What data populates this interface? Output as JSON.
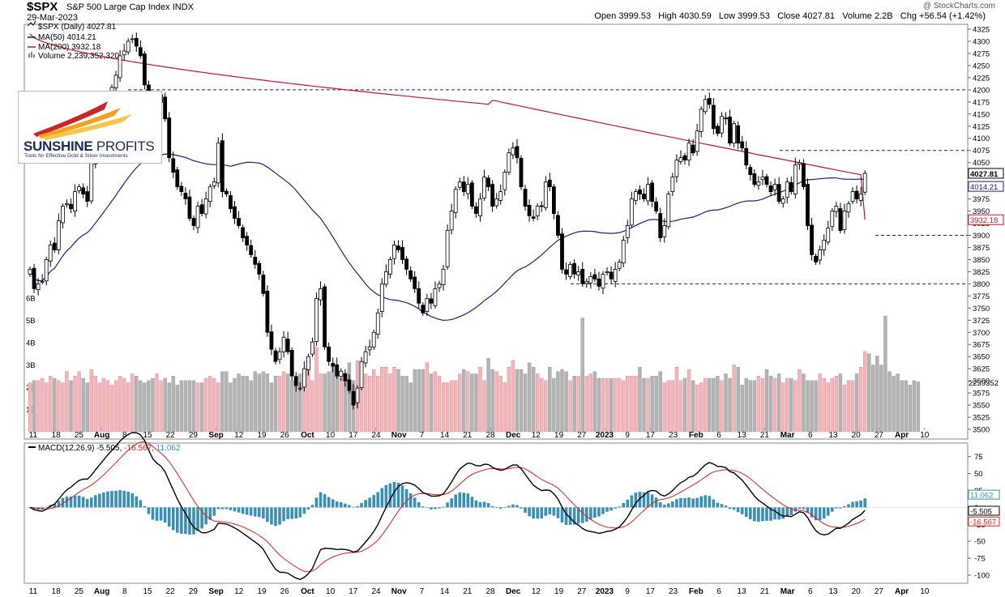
{
  "header": {
    "symbol": "$SPX",
    "name": "S&P 500 Large Cap Index",
    "exchange": "INDX",
    "date": "29-Mar-2023",
    "open_label": "Open",
    "open": "3999.53",
    "high_label": "High",
    "high": "4030.59",
    "low_label": "Low",
    "low": "3999.53",
    "close_label": "Close",
    "close": "4027.81",
    "volume_label": "Volume",
    "volume": "2.2B",
    "chg_label": "Chg",
    "chg": "+56.54 (+1.42%)",
    "watermark": "@ StockCharts.com"
  },
  "logo": {
    "name_bold": "SUNSHINE",
    "name_light": "PROFITS",
    "tagline": "Tools for Effective Gold & Silver Investments"
  },
  "legend": {
    "price": "$SPX (Daily) 4027.81",
    "ma50": "MA(50) 4014.21",
    "ma200": "MA(200) 3932.18",
    "volume": "Volume 2,239,352,320"
  },
  "macd_legend": {
    "label": "MACD(12,26,9)",
    "macd": "-5.505",
    "signal": "-16.567",
    "hist": "11.062"
  },
  "colors": {
    "up_volume": "#f2b5b9",
    "down_volume": "#b3b3b3",
    "ma50": "#1a237e",
    "ma200": "#c2182b",
    "macd_line": "#000000",
    "signal_line": "#e0201b",
    "histogram": "#3a8fb7",
    "level_line": "#1a237e"
  },
  "chart_data": [
    {
      "type": "candlestick",
      "title": "$SPX (Daily)",
      "x_tick_labels": [
        "11",
        "18",
        "25",
        "Aug",
        "8",
        "15",
        "22",
        "29",
        "Sep",
        "12",
        "19",
        "26",
        "Oct",
        "10",
        "17",
        "24",
        "Nov",
        "7",
        "14",
        "21",
        "28",
        "Dec",
        "12",
        "19",
        "27",
        "2023",
        "9",
        "17",
        "23",
        "Feb",
        "6",
        "13",
        "21",
        "Mar",
        "6",
        "13",
        "20",
        "27",
        "Apr",
        "10"
      ],
      "y_ticks": [
        3500,
        3525,
        3550,
        3575,
        3600,
        3625,
        3650,
        3675,
        3700,
        3725,
        3750,
        3775,
        3800,
        3825,
        3850,
        3875,
        3900,
        3925,
        3950,
        3975,
        4000,
        4025,
        4050,
        4075,
        4100,
        4125,
        4150,
        4175,
        4200,
        4225,
        4250,
        4275,
        4300,
        4325
      ],
      "ylim": [
        3480,
        4335
      ],
      "horizontal_levels": [
        4200,
        4075,
        3900,
        3800
      ],
      "last_values": {
        "close": "4027.81",
        "ma50": "4014.21",
        "ma200": "3932.18"
      },
      "close_series": [
        3830,
        3790,
        3800,
        3805,
        3850,
        3880,
        3870,
        3930,
        3960,
        3965,
        3955,
        3990,
        4000,
        3985,
        3970,
        4050,
        4100,
        4120,
        4150,
        4180,
        4205,
        4230,
        4270,
        4280,
        4300,
        4305,
        4290,
        4270,
        4210,
        4130,
        4120,
        4175,
        4190,
        4140,
        4060,
        4030,
        4000,
        3990,
        3975,
        3935,
        3920,
        3960,
        3945,
        3975,
        4000,
        4010,
        4090,
        3990,
        3985,
        3955,
        3935,
        3920,
        3895,
        3880,
        3860,
        3840,
        3820,
        3780,
        3700,
        3665,
        3640,
        3660,
        3690,
        3660,
        3610,
        3590,
        3585,
        3625,
        3650,
        3680,
        3770,
        3790,
        3670,
        3640,
        3630,
        3610,
        3620,
        3600,
        3580,
        3550,
        3585,
        3640,
        3660,
        3670,
        3700,
        3740,
        3800,
        3825,
        3850,
        3880,
        3870,
        3850,
        3830,
        3810,
        3790,
        3760,
        3740,
        3770,
        3760,
        3790,
        3800,
        3830,
        3910,
        3950,
        3995,
        4010,
        3990,
        4005,
        3960,
        3945,
        3975,
        4020,
        4000,
        3960,
        3975,
        3990,
        4030,
        4070,
        4080,
        4060,
        4000,
        3960,
        3940,
        3935,
        3960,
        3960,
        4010,
        4000,
        3945,
        3900,
        3830,
        3820,
        3840,
        3820,
        3825,
        3800,
        3805,
        3815,
        3810,
        3795,
        3820,
        3825,
        3810,
        3830,
        3845,
        3890,
        3920,
        3975,
        3990,
        3985,
        3975,
        4005,
        3970,
        3950,
        3895,
        3920,
        3985,
        4020,
        4055,
        4060,
        4055,
        4090,
        4070,
        4115,
        4160,
        4180,
        4170,
        4120,
        4110,
        4145,
        4140,
        4090,
        4130,
        4090,
        4080,
        4045,
        4025,
        4005,
        4010,
        4020,
        4005,
        3990,
        4005,
        3970,
        3975,
        4010,
        3990,
        4045,
        4050,
        4000,
        3920,
        3860,
        3845,
        3870,
        3890,
        3915,
        3950,
        3960,
        3910,
        3950,
        3965,
        3990,
        3975,
        3985,
        4027.81
      ],
      "ma50": "computed from close_series",
      "ma200": "computed from close_series"
    },
    {
      "type": "bar",
      "title": "Volume",
      "y_tick_labels": [
        "1B",
        "2B",
        "3B",
        "4B",
        "5B",
        "6B"
      ],
      "ylim": [
        0,
        6.5
      ],
      "values_b": [
        2.2,
        2.3,
        2.3,
        2.4,
        2.2,
        2.5,
        2.4,
        2.3,
        2.2,
        2.7,
        2.3,
        2.5,
        2.7,
        2.4,
        2.2,
        2.8,
        2.5,
        2.2,
        2.4,
        2.3,
        2.1,
        2.3,
        2.5,
        2.4,
        2.2,
        2.6,
        2.5,
        2.3,
        2.2,
        2.3,
        2.4,
        2.6,
        2.3,
        2.4,
        2.2,
        2.5,
        2.1,
        2.3,
        2.3,
        2.3,
        2.3,
        2.2,
        2.2,
        2.4,
        2.5,
        2.4,
        2.2,
        2.7,
        2.7,
        2.2,
        2.4,
        2.6,
        2.5,
        2.5,
        2.3,
        2.7,
        2.6,
        2.7,
        2.6,
        2.2,
        2.5,
        2.5,
        2.7,
        2.6,
        2.3,
        2.4,
        2.6,
        2.3,
        2.9,
        2.3,
        3.8,
        2.6,
        2.6,
        2.7,
        2.9,
        2.6,
        2.4,
        2.6,
        3.1,
        2.3,
        3.2,
        2.8,
        2.6,
        2.5,
        2.8,
        2.5,
        2.9,
        2.9,
        2.6,
        2.9,
        2.8,
        2.5,
        2.5,
        2.2,
        2.8,
        2.8,
        2.8,
        3.1,
        2.6,
        2.7,
        2.5,
        2.2,
        2.2,
        2.3,
        2.3,
        2.6,
        2.8,
        2.7,
        2.6,
        2.6,
        2.9,
        2.3,
        3.3,
        2.8,
        2.7,
        2.5,
        2.2,
        2.9,
        3.2,
        2.8,
        2.8,
        2.6,
        3.1,
        2.9,
        2.6,
        2.4,
        2.3,
        2.9,
        2.4,
        2.7,
        2.8,
        2.7,
        2.3,
        2.5,
        2.5,
        5.1,
        2.5,
        2.6,
        2.7,
        2.4,
        2.4,
        2.4,
        2.4,
        2.4,
        2.4,
        2.3,
        2.5,
        2.5,
        2.5,
        2.9,
        2.4,
        2.4,
        2.5,
        2.5,
        2.7,
        2.2,
        2.3,
        2.3,
        2.9,
        2.3,
        2.4,
        2.8,
        2.3,
        2.1,
        2.2,
        2.4,
        2.4,
        2.4,
        2.5,
        2.3,
        2.6,
        2.4,
        3.0,
        2.9,
        2.1,
        2.4,
        2.3,
        2.3,
        2.5,
        2.4,
        2.8,
        2.5,
        2.4,
        2.6,
        2.2,
        2.4,
        2.4,
        2.3,
        2.8,
        2.6,
        2.3,
        2.3,
        2.3,
        2.6,
        2.4,
        2.2,
        2.4,
        2.5,
        2.6,
        2.1,
        2.3,
        2.3,
        2.6,
        2.9,
        3.6,
        3.5,
        3.0,
        3.4,
        3.0,
        5.2,
        2.7,
        2.5,
        2.6,
        2.3,
        2.3,
        2.1,
        2.3,
        2.24
      ]
    },
    {
      "type": "line",
      "title": "MACD(12,26,9)",
      "y_ticks": [
        75,
        50,
        25,
        0,
        -25,
        -50,
        -75,
        -100
      ],
      "ylim": [
        -112,
        95
      ],
      "series": [
        {
          "name": "MACD",
          "last": "-5.505"
        },
        {
          "name": "Signal",
          "last": "-16.567"
        },
        {
          "name": "Histogram",
          "last": "11.062"
        }
      ]
    }
  ]
}
